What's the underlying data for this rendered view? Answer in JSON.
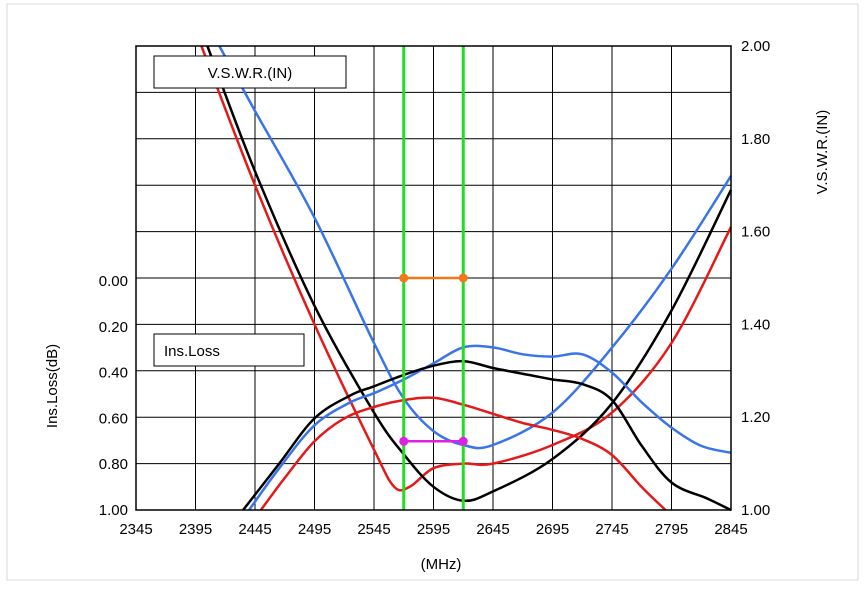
{
  "chart_data": {
    "type": "line",
    "xlabel": "(MHz)",
    "x_ticks": [
      2345,
      2395,
      2445,
      2495,
      2545,
      2595,
      2645,
      2695,
      2745,
      2795,
      2845
    ],
    "xlim": [
      2345,
      2845
    ],
    "y_left": {
      "label": "Ins.Loss(dB)",
      "ticks": [
        "0.00",
        "0.20",
        "0.40",
        "0.60",
        "0.80",
        "1.00"
      ],
      "range": [
        0.0,
        1.0
      ],
      "inverted": true
    },
    "y_right": {
      "label": "V.S.W.R.(IN)",
      "ticks": [
        "1.00",
        "1.20",
        "1.40",
        "1.60",
        "1.80",
        "2.00"
      ],
      "range": [
        1.0,
        2.0
      ]
    },
    "annotations": [
      "V.S.W.R.(IN)",
      "Ins.Loss"
    ],
    "grid": true,
    "passband_markers_mhz": [
      2570,
      2620
    ],
    "spec_lines": {
      "vswr": {
        "x": [
          2570,
          2620
        ],
        "y": 1.5,
        "color": "#f07818"
      },
      "insloss": {
        "x": [
          2570,
          2620
        ],
        "y": 0.7,
        "color": "#e020e0"
      }
    },
    "colors": {
      "black": "#000000",
      "blue": "#3a74ea",
      "red": "#e41a1a",
      "marker": "#22dd22"
    },
    "vswr_series": [
      {
        "color": "#000000",
        "x": [
          2405,
          2445,
          2495,
          2545,
          2570,
          2595,
          2620,
          2645,
          2695,
          2745,
          2795,
          2845
        ],
        "y": [
          2.0,
          1.73,
          1.44,
          1.21,
          1.12,
          1.05,
          1.02,
          1.04,
          1.11,
          1.23,
          1.43,
          1.69
        ]
      },
      {
        "color": "#3a74ea",
        "x": [
          2415,
          2445,
          2495,
          2545,
          2570,
          2595,
          2620,
          2645,
          2695,
          2745,
          2795,
          2845
        ],
        "y": [
          2.0,
          1.86,
          1.63,
          1.36,
          1.24,
          1.17,
          1.14,
          1.14,
          1.21,
          1.35,
          1.52,
          1.72
        ]
      },
      {
        "color": "#e41a1a",
        "x": [
          2400,
          2445,
          2495,
          2545,
          2562,
          2575,
          2595,
          2620,
          2645,
          2695,
          2745,
          2795,
          2845
        ],
        "y": [
          2.0,
          1.7,
          1.4,
          1.13,
          1.05,
          1.05,
          1.09,
          1.1,
          1.1,
          1.14,
          1.21,
          1.36,
          1.61
        ]
      }
    ],
    "insloss_series": [
      {
        "color": "#000000",
        "x": [
          2435,
          2465,
          2495,
          2525,
          2545,
          2570,
          2595,
          2620,
          2645,
          2675,
          2695,
          2720,
          2745,
          2770,
          2795,
          2825,
          2845
        ],
        "y": [
          1.0,
          0.8,
          0.6,
          0.5,
          0.46,
          0.41,
          0.37,
          0.35,
          0.38,
          0.41,
          0.43,
          0.45,
          0.52,
          0.72,
          0.88,
          0.95,
          1.0
        ]
      },
      {
        "color": "#3a74ea",
        "x": [
          2440,
          2465,
          2495,
          2525,
          2545,
          2570,
          2595,
          2620,
          2645,
          2670,
          2695,
          2720,
          2745,
          2770,
          2795,
          2820,
          2845
        ],
        "y": [
          1.0,
          0.82,
          0.63,
          0.53,
          0.49,
          0.43,
          0.36,
          0.29,
          0.29,
          0.32,
          0.33,
          0.32,
          0.4,
          0.53,
          0.64,
          0.72,
          0.75
        ]
      },
      {
        "color": "#e41a1a",
        "x": [
          2450,
          2470,
          2495,
          2520,
          2545,
          2570,
          2595,
          2620,
          2645,
          2670,
          2695,
          2720,
          2745,
          2770,
          2790
        ],
        "y": [
          1.0,
          0.86,
          0.7,
          0.6,
          0.55,
          0.52,
          0.51,
          0.54,
          0.58,
          0.62,
          0.65,
          0.69,
          0.76,
          0.9,
          1.0
        ]
      }
    ]
  }
}
